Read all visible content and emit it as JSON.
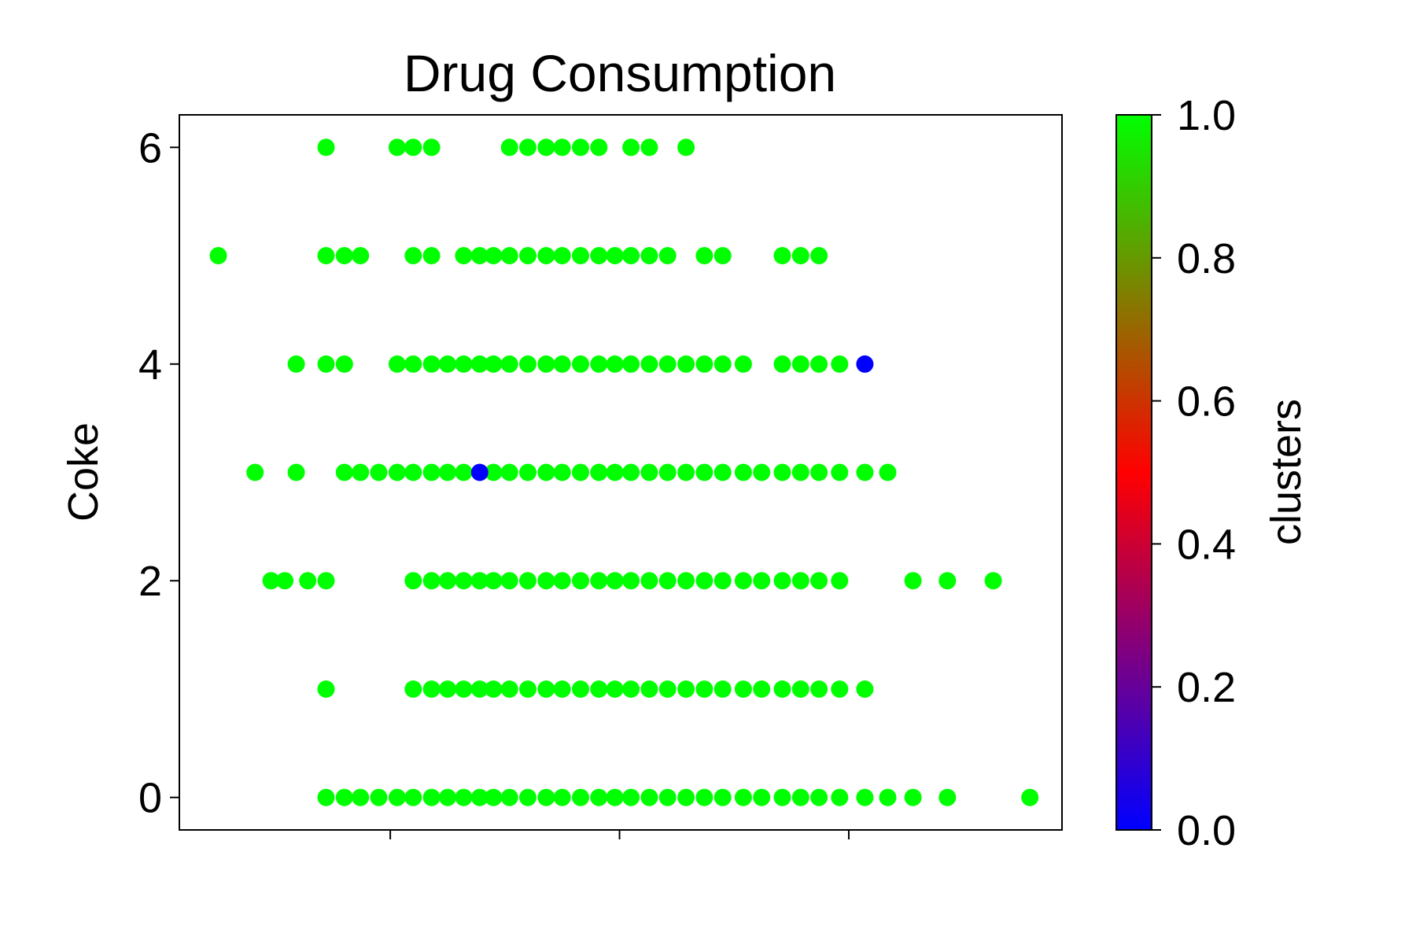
{
  "chart_data": {
    "type": "scatter",
    "title": "Drug Consumption",
    "xlabel": "",
    "ylabel": "Coke",
    "xlim": [
      -1.25,
      2.6
    ],
    "ylim": [
      -0.3,
      6.3
    ],
    "x_ticks": [
      -0.33,
      0.67,
      1.67
    ],
    "y_ticks": [
      0,
      2,
      4,
      6
    ],
    "grid": false,
    "colorbar": {
      "label": "clusters",
      "range": [
        0.0,
        1.0
      ],
      "ticks": [
        "0.0",
        "0.2",
        "0.4",
        "0.6",
        "0.8",
        "1.0"
      ],
      "colormap": [
        "#0000ff",
        "#ff0000",
        "#00ff00"
      ]
    },
    "series": [
      {
        "cluster": 1,
        "color": "#00ff00",
        "points": [
          [
            -0.61,
            6
          ],
          [
            -0.3,
            6
          ],
          [
            -0.23,
            6
          ],
          [
            -0.15,
            6
          ],
          [
            0.19,
            6
          ],
          [
            0.27,
            6
          ],
          [
            0.35,
            6
          ],
          [
            0.42,
            6
          ],
          [
            0.5,
            6
          ],
          [
            0.58,
            6
          ],
          [
            0.72,
            6
          ],
          [
            0.8,
            6
          ],
          [
            0.96,
            6
          ],
          [
            -1.08,
            5
          ],
          [
            -0.61,
            5
          ],
          [
            -0.53,
            5
          ],
          [
            -0.46,
            5
          ],
          [
            -0.23,
            5
          ],
          [
            -0.15,
            5
          ],
          [
            -0.01,
            5
          ],
          [
            0.06,
            5
          ],
          [
            0.12,
            5
          ],
          [
            0.19,
            5
          ],
          [
            0.27,
            5
          ],
          [
            0.35,
            5
          ],
          [
            0.42,
            5
          ],
          [
            0.5,
            5
          ],
          [
            0.58,
            5
          ],
          [
            0.65,
            5
          ],
          [
            0.72,
            5
          ],
          [
            0.8,
            5
          ],
          [
            0.88,
            5
          ],
          [
            1.04,
            5
          ],
          [
            1.12,
            5
          ],
          [
            1.38,
            5
          ],
          [
            1.46,
            5
          ],
          [
            1.54,
            5
          ],
          [
            -0.74,
            4
          ],
          [
            -0.61,
            4
          ],
          [
            -0.53,
            4
          ],
          [
            -0.3,
            4
          ],
          [
            -0.23,
            4
          ],
          [
            -0.15,
            4
          ],
          [
            -0.08,
            4
          ],
          [
            -0.01,
            4
          ],
          [
            0.06,
            4
          ],
          [
            0.12,
            4
          ],
          [
            0.19,
            4
          ],
          [
            0.27,
            4
          ],
          [
            0.35,
            4
          ],
          [
            0.42,
            4
          ],
          [
            0.5,
            4
          ],
          [
            0.58,
            4
          ],
          [
            0.65,
            4
          ],
          [
            0.72,
            4
          ],
          [
            0.8,
            4
          ],
          [
            0.88,
            4
          ],
          [
            0.96,
            4
          ],
          [
            1.04,
            4
          ],
          [
            1.12,
            4
          ],
          [
            1.21,
            4
          ],
          [
            1.38,
            4
          ],
          [
            1.46,
            4
          ],
          [
            1.54,
            4
          ],
          [
            1.63,
            4
          ],
          [
            -0.92,
            3
          ],
          [
            -0.74,
            3
          ],
          [
            -0.53,
            3
          ],
          [
            -0.46,
            3
          ],
          [
            -0.38,
            3
          ],
          [
            -0.3,
            3
          ],
          [
            -0.23,
            3
          ],
          [
            -0.15,
            3
          ],
          [
            -0.08,
            3
          ],
          [
            -0.01,
            3
          ],
          [
            0.12,
            3
          ],
          [
            0.19,
            3
          ],
          [
            0.27,
            3
          ],
          [
            0.35,
            3
          ],
          [
            0.42,
            3
          ],
          [
            0.5,
            3
          ],
          [
            0.58,
            3
          ],
          [
            0.65,
            3
          ],
          [
            0.72,
            3
          ],
          [
            0.8,
            3
          ],
          [
            0.88,
            3
          ],
          [
            0.96,
            3
          ],
          [
            1.04,
            3
          ],
          [
            1.12,
            3
          ],
          [
            1.21,
            3
          ],
          [
            1.29,
            3
          ],
          [
            1.38,
            3
          ],
          [
            1.46,
            3
          ],
          [
            1.54,
            3
          ],
          [
            1.63,
            3
          ],
          [
            1.74,
            3
          ],
          [
            1.84,
            3
          ],
          [
            -0.85,
            2
          ],
          [
            -0.79,
            2
          ],
          [
            -0.69,
            2
          ],
          [
            -0.61,
            2
          ],
          [
            -0.23,
            2
          ],
          [
            -0.15,
            2
          ],
          [
            -0.08,
            2
          ],
          [
            -0.01,
            2
          ],
          [
            0.06,
            2
          ],
          [
            0.12,
            2
          ],
          [
            0.19,
            2
          ],
          [
            0.27,
            2
          ],
          [
            0.35,
            2
          ],
          [
            0.42,
            2
          ],
          [
            0.5,
            2
          ],
          [
            0.58,
            2
          ],
          [
            0.65,
            2
          ],
          [
            0.72,
            2
          ],
          [
            0.8,
            2
          ],
          [
            0.88,
            2
          ],
          [
            0.96,
            2
          ],
          [
            1.04,
            2
          ],
          [
            1.12,
            2
          ],
          [
            1.21,
            2
          ],
          [
            1.29,
            2
          ],
          [
            1.38,
            2
          ],
          [
            1.46,
            2
          ],
          [
            1.54,
            2
          ],
          [
            1.63,
            2
          ],
          [
            1.95,
            2
          ],
          [
            2.1,
            2
          ],
          [
            2.3,
            2
          ],
          [
            -0.61,
            1
          ],
          [
            -0.23,
            1
          ],
          [
            -0.15,
            1
          ],
          [
            -0.08,
            1
          ],
          [
            -0.01,
            1
          ],
          [
            0.06,
            1
          ],
          [
            0.12,
            1
          ],
          [
            0.19,
            1
          ],
          [
            0.27,
            1
          ],
          [
            0.35,
            1
          ],
          [
            0.42,
            1
          ],
          [
            0.5,
            1
          ],
          [
            0.58,
            1
          ],
          [
            0.65,
            1
          ],
          [
            0.72,
            1
          ],
          [
            0.8,
            1
          ],
          [
            0.88,
            1
          ],
          [
            0.96,
            1
          ],
          [
            1.04,
            1
          ],
          [
            1.12,
            1
          ],
          [
            1.21,
            1
          ],
          [
            1.29,
            1
          ],
          [
            1.38,
            1
          ],
          [
            1.46,
            1
          ],
          [
            1.54,
            1
          ],
          [
            1.63,
            1
          ],
          [
            1.74,
            1
          ],
          [
            -0.61,
            0
          ],
          [
            -0.53,
            0
          ],
          [
            -0.46,
            0
          ],
          [
            -0.38,
            0
          ],
          [
            -0.3,
            0
          ],
          [
            -0.23,
            0
          ],
          [
            -0.15,
            0
          ],
          [
            -0.08,
            0
          ],
          [
            -0.01,
            0
          ],
          [
            0.06,
            0
          ],
          [
            0.12,
            0
          ],
          [
            0.19,
            0
          ],
          [
            0.27,
            0
          ],
          [
            0.35,
            0
          ],
          [
            0.42,
            0
          ],
          [
            0.5,
            0
          ],
          [
            0.58,
            0
          ],
          [
            0.65,
            0
          ],
          [
            0.72,
            0
          ],
          [
            0.8,
            0
          ],
          [
            0.88,
            0
          ],
          [
            0.96,
            0
          ],
          [
            1.04,
            0
          ],
          [
            1.12,
            0
          ],
          [
            1.21,
            0
          ],
          [
            1.29,
            0
          ],
          [
            1.38,
            0
          ],
          [
            1.46,
            0
          ],
          [
            1.54,
            0
          ],
          [
            1.63,
            0
          ],
          [
            1.74,
            0
          ],
          [
            1.84,
            0
          ],
          [
            1.95,
            0
          ],
          [
            2.1,
            0
          ],
          [
            2.46,
            0
          ]
        ]
      },
      {
        "cluster": 0,
        "color": "#0000ff",
        "points": [
          [
            1.74,
            4
          ],
          [
            0.06,
            3
          ]
        ]
      }
    ]
  }
}
